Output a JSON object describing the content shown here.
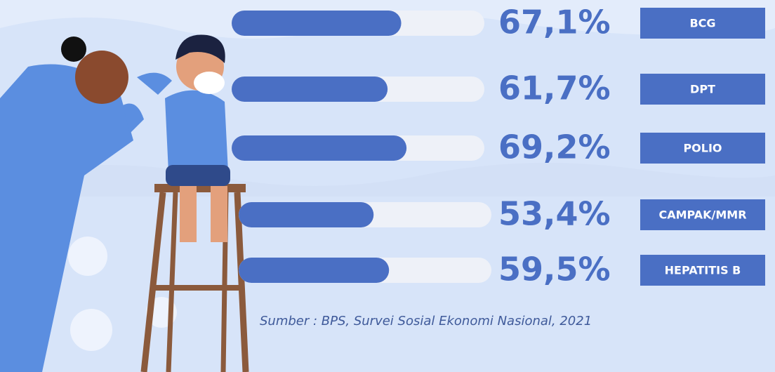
{
  "chart_data": {
    "type": "bar",
    "orientation": "horizontal",
    "categories": [
      "BCG",
      "DPT",
      "POLIO",
      "CAMPAK/MMR",
      "HEPATITIS B"
    ],
    "values": [
      67.1,
      61.7,
      69.2,
      53.4,
      59.5
    ],
    "value_labels": [
      "67,1%",
      "61,7%",
      "69,2%",
      "53,4%",
      "59,5%"
    ],
    "color": "#4a6fc4",
    "xlim": [
      0,
      100
    ],
    "source": "Sumber : BPS, Survei Sosial Ekonomi Nasional, 2021"
  }
}
